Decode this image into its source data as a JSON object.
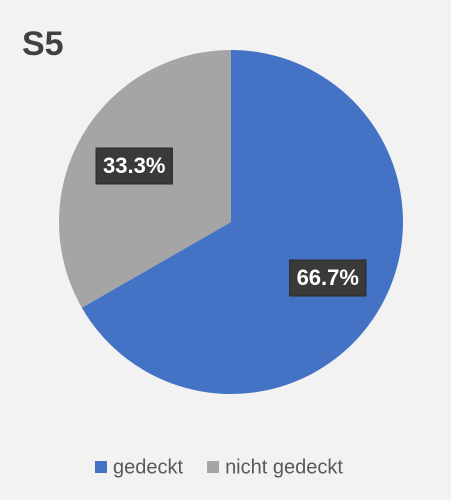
{
  "chart_data": {
    "type": "pie",
    "title": "S5",
    "categories": [
      "gedeckt",
      "nicht gedeckt"
    ],
    "values": [
      66.7,
      33.3
    ],
    "value_labels": [
      "66.7%",
      "33.3%"
    ],
    "colors": [
      "#4472c4",
      "#a5a5a5"
    ],
    "legend": "bottom"
  }
}
